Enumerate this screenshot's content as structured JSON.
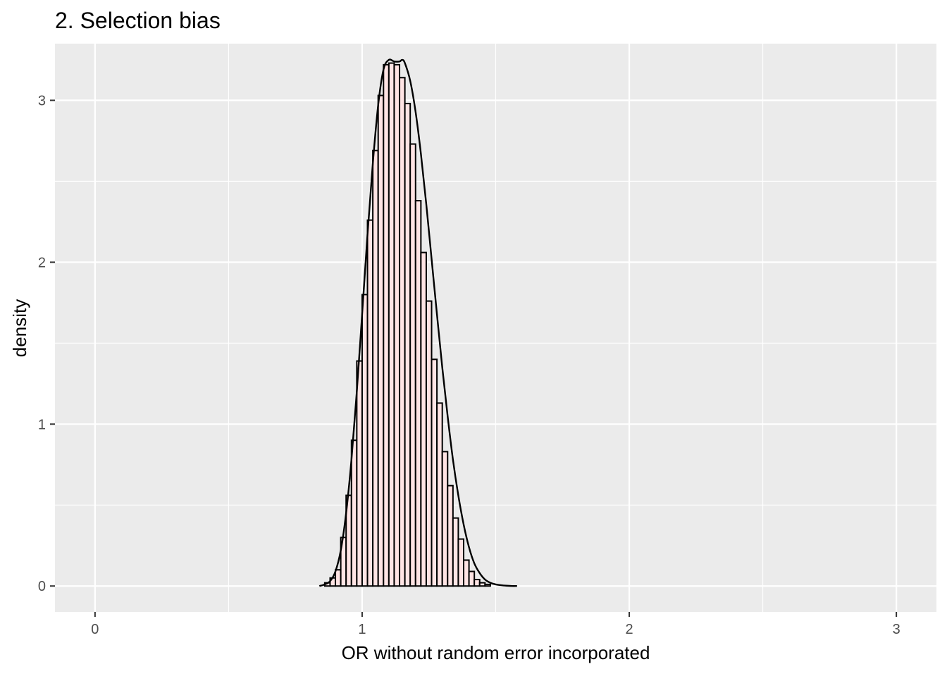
{
  "chart_data": {
    "type": "bar",
    "title": "2. Selection bias",
    "xlabel": "OR without random error incorporated",
    "ylabel": "density",
    "xlim": [
      -0.15,
      3.15
    ],
    "ylim": [
      -0.16,
      3.35
    ],
    "x_ticks": [
      0,
      1,
      2,
      3
    ],
    "x_tick_labels": [
      "0",
      "1",
      "2",
      "3"
    ],
    "y_ticks": [
      0,
      1,
      2,
      3
    ],
    "y_tick_labels": [
      "0",
      "1",
      "2",
      "3"
    ],
    "grid": true,
    "legend": "none",
    "bin_width": 0.02,
    "bin_starts": [
      0.84,
      0.86,
      0.88,
      0.9,
      0.92,
      0.94,
      0.96,
      0.98,
      1.0,
      1.02,
      1.04,
      1.06,
      1.08,
      1.1,
      1.12,
      1.14,
      1.16,
      1.18,
      1.2,
      1.22,
      1.24,
      1.26,
      1.28,
      1.3,
      1.32,
      1.34,
      1.36,
      1.38,
      1.4,
      1.42,
      1.44,
      1.46,
      1.48,
      1.5,
      1.52,
      1.54,
      1.56,
      1.58
    ],
    "density": [
      0.0,
      0.02,
      0.05,
      0.1,
      0.3,
      0.56,
      0.9,
      1.39,
      1.8,
      2.26,
      2.69,
      3.03,
      3.22,
      3.23,
      3.22,
      3.14,
      2.98,
      2.73,
      2.38,
      2.06,
      1.76,
      1.4,
      1.13,
      0.83,
      0.62,
      0.42,
      0.29,
      0.16,
      0.09,
      0.04,
      0.02,
      0.01,
      0.0,
      0.0,
      0.0,
      0.0,
      0.0,
      0.0
    ],
    "density_curve": {
      "x": [
        0.84,
        0.86,
        0.88,
        0.9,
        0.92,
        0.94,
        0.96,
        0.98,
        1.0,
        1.02,
        1.04,
        1.06,
        1.08,
        1.1,
        1.12,
        1.14,
        1.15,
        1.16,
        1.18,
        1.2,
        1.22,
        1.24,
        1.26,
        1.28,
        1.3,
        1.32,
        1.34,
        1.36,
        1.38,
        1.4,
        1.42,
        1.44,
        1.46,
        1.48,
        1.5,
        1.52,
        1.54,
        1.56,
        1.58
      ],
      "y": [
        0.0,
        0.01,
        0.03,
        0.09,
        0.22,
        0.45,
        0.78,
        1.2,
        1.68,
        2.17,
        2.61,
        2.97,
        3.19,
        3.25,
        3.24,
        3.24,
        3.25,
        3.23,
        3.12,
        2.93,
        2.67,
        2.36,
        2.02,
        1.68,
        1.35,
        1.05,
        0.78,
        0.56,
        0.38,
        0.24,
        0.14,
        0.08,
        0.04,
        0.02,
        0.01,
        0.005,
        0.002,
        0.0,
        0.0
      ]
    },
    "colors": {
      "panel": "#ebebeb",
      "grid_major": "#ffffff",
      "bar_fill": "#ffe4e4",
      "bar_stroke": "#000000",
      "curve": "#000000",
      "tick": "#333333"
    }
  }
}
